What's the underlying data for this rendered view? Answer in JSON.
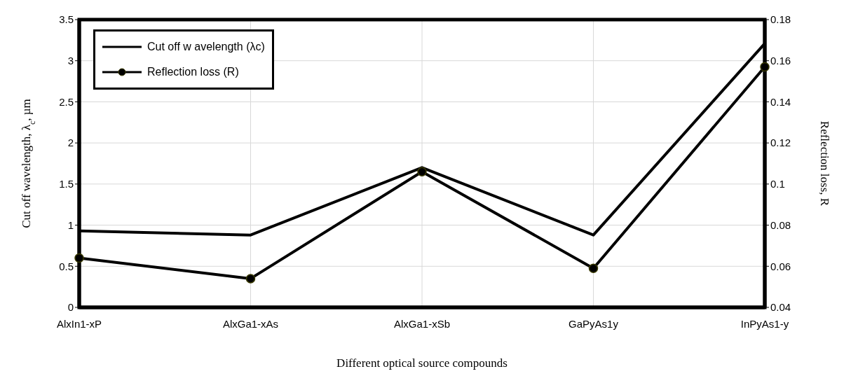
{
  "chart_data": {
    "type": "line",
    "xlabel": "Different optical source compounds",
    "ylabel": "Cut off wavelength, λ$_{c}$, µm",
    "y2label": "Reflection loss, R",
    "categories": [
      "AlxIn1-xP",
      "AlxGa1-xAs",
      "AlxGa1-xSb",
      "GaPyAs1y",
      "InPyAs1-y"
    ],
    "series": [
      {
        "name": "Cut off w avelength (λc)",
        "color": "#000000",
        "marker": "none",
        "values": [
          0.93,
          0.88,
          1.7,
          0.88,
          3.21
        ]
      },
      {
        "name": "Reflection loss (R)",
        "color": "#000000",
        "marker": "circle",
        "axis": "y2",
        "values": [
          0.064,
          0.054,
          0.106,
          0.059,
          0.157
        ]
      }
    ],
    "ylim": [
      0,
      3.5
    ],
    "yticks": [
      0,
      0.5,
      1,
      1.5,
      2,
      2.5,
      3,
      3.5
    ],
    "y2lim": [
      0.04,
      0.18
    ],
    "y2ticks": [
      0.04,
      0.06,
      0.08,
      0.1,
      0.12,
      0.14,
      0.16,
      0.18
    ],
    "grid": true,
    "legend": "top left",
    "line_style": "solid"
  }
}
